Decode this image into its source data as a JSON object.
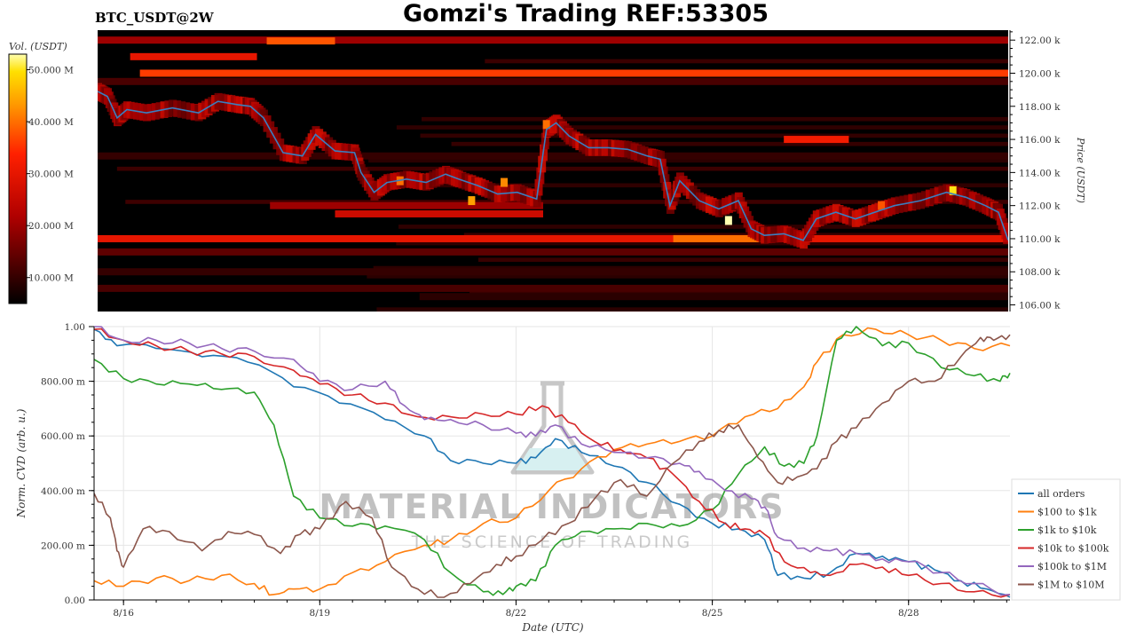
{
  "header": {
    "symbol": "BTC_USDT@2W",
    "title": "Gomzi's Trading REF:53305"
  },
  "watermark": {
    "brand": "MATERIAL INDICATORS",
    "tagline": "THE SCIENCE OF TRADING"
  },
  "colors": {
    "all_orders": "#1f77b4",
    "100_to_1k": "#ff7f0e",
    "1k_to_10k": "#2ca02c",
    "10k_to_100k": "#d62728",
    "100k_to_1M": "#9467bd",
    "1M_to_10M": "#8c564b",
    "heatmap_price_line": "#3a7fc0",
    "heatmap_bg": "#000000"
  },
  "chart_data": [
    {
      "type": "heatmap",
      "colorbar": {
        "label": "Vol. (USDT)",
        "ticks": [
          "10.000 M",
          "20.000 M",
          "30.000 M",
          "40.000 M",
          "50.000 M"
        ],
        "tick_values": [
          10,
          20,
          30,
          40,
          50
        ],
        "range": [
          5,
          53
        ],
        "colormap": "hot"
      },
      "yaxis": {
        "label": "Price (USDT)",
        "side": "right",
        "ticks": [
          "106.00 k",
          "108.00 k",
          "110.00 k",
          "112.00 k",
          "114.00 k",
          "116.00 k",
          "118.00 k",
          "120.00 k",
          "122.00 k"
        ],
        "tick_values": [
          106,
          108,
          110,
          112,
          114,
          116,
          118,
          120,
          122
        ],
        "range": [
          105.6,
          122.6
        ]
      },
      "xaxis": {
        "range_days": [
          15.55,
          29.55
        ]
      },
      "liquidity_bands": [
        {
          "price": 122.0,
          "x0": 15.55,
          "x1": 29.55,
          "level": 20
        },
        {
          "price": 121.95,
          "x0": 18.15,
          "x1": 19.2,
          "level": 38
        },
        {
          "price": 121.0,
          "x0": 16.05,
          "x1": 18.0,
          "level": 30
        },
        {
          "price": 120.0,
          "x0": 16.2,
          "x1": 29.55,
          "level": 36
        },
        {
          "price": 119.5,
          "x0": 15.55,
          "x1": 29.55,
          "level": 12
        },
        {
          "price": 116.0,
          "x0": 26.1,
          "x1": 27.1,
          "level": 32
        },
        {
          "price": 115.0,
          "x0": 15.55,
          "x1": 29.55,
          "level": 10
        },
        {
          "price": 112.0,
          "x0": 18.2,
          "x1": 22.4,
          "level": 20
        },
        {
          "price": 111.5,
          "x0": 19.2,
          "x1": 22.4,
          "level": 26
        },
        {
          "price": 110.0,
          "x0": 15.55,
          "x1": 29.55,
          "level": 30
        },
        {
          "price": 110.0,
          "x0": 24.4,
          "x1": 25.8,
          "level": 40
        },
        {
          "price": 109.2,
          "x0": 15.55,
          "x1": 29.55,
          "level": 14
        },
        {
          "price": 108.0,
          "x0": 15.55,
          "x1": 29.55,
          "level": 10
        },
        {
          "price": 107.0,
          "x0": 15.55,
          "x1": 29.55,
          "level": 12
        },
        {
          "price": 106.5,
          "x0": 20.5,
          "x1": 29.55,
          "level": 9
        }
      ],
      "price_series": {
        "name": "",
        "x": [
          15.55,
          15.7,
          15.85,
          16.0,
          16.3,
          16.7,
          17.1,
          17.4,
          17.7,
          17.9,
          18.1,
          18.4,
          18.7,
          18.9,
          19.2,
          19.5,
          19.6,
          19.8,
          20.0,
          20.3,
          20.6,
          20.9,
          21.1,
          21.4,
          21.7,
          22.0,
          22.3,
          22.45,
          22.6,
          22.8,
          23.1,
          23.4,
          23.7,
          24.0,
          24.2,
          24.35,
          24.5,
          24.8,
          25.1,
          25.4,
          25.6,
          25.8,
          26.1,
          26.4,
          26.6,
          26.9,
          27.2,
          27.5,
          27.8,
          28.2,
          28.6,
          28.9,
          29.2,
          29.4,
          29.55
        ],
        "y": [
          118.9,
          118.6,
          117.3,
          117.8,
          117.6,
          117.9,
          117.6,
          118.3,
          118.1,
          118.0,
          117.3,
          115.2,
          115.0,
          116.3,
          115.3,
          115.2,
          114.0,
          112.8,
          113.4,
          113.6,
          113.4,
          113.9,
          113.6,
          113.2,
          112.7,
          112.8,
          112.4,
          116.6,
          117.0,
          116.2,
          115.5,
          115.5,
          115.4,
          115.0,
          114.8,
          112.0,
          113.5,
          112.3,
          111.8,
          112.3,
          110.6,
          110.2,
          110.3,
          109.9,
          111.2,
          111.6,
          111.2,
          111.6,
          112.0,
          112.3,
          112.8,
          112.5,
          112.0,
          111.6,
          109.9
        ]
      },
      "hotspots": [
        {
          "x": 22.45,
          "price": 116.9,
          "level": 40
        },
        {
          "x": 25.25,
          "price": 111.1,
          "level": 53
        },
        {
          "x": 28.7,
          "price": 112.9,
          "level": 50
        },
        {
          "x": 21.3,
          "price": 112.3,
          "level": 44
        },
        {
          "x": 21.8,
          "price": 113.4,
          "level": 42
        },
        {
          "x": 20.2,
          "price": 113.5,
          "level": 40
        },
        {
          "x": 27.6,
          "price": 112.0,
          "level": 38
        }
      ]
    },
    {
      "type": "line",
      "xlabel": "Date (UTC)",
      "ylabel": "Norm. CVD (arb. u.)",
      "ylim": [
        0,
        1
      ],
      "xlim_days": [
        15.55,
        29.55
      ],
      "x_ticks": [
        "8/16",
        "8/19",
        "8/22",
        "8/25",
        "8/28"
      ],
      "x_tick_values": [
        16,
        19,
        22,
        25,
        28
      ],
      "y_ticks": [
        "0.00",
        "200.00 m",
        "400.00 m",
        "600.00 m",
        "800.00 m",
        "1.00"
      ],
      "y_tick_values": [
        0,
        0.2,
        0.4,
        0.6,
        0.8,
        1.0
      ],
      "legend_position": "bottom-right",
      "series": [
        {
          "key": "all_orders",
          "name": "all orders",
          "x": [
            15.55,
            15.9,
            16.5,
            17.2,
            17.9,
            18.6,
            19.3,
            20.0,
            20.6,
            21.0,
            21.5,
            22.0,
            22.3,
            22.6,
            23.0,
            23.5,
            24.0,
            24.5,
            25.0,
            25.4,
            25.8,
            26.0,
            26.4,
            26.8,
            27.2,
            27.6,
            28.0,
            28.4,
            28.8,
            29.2,
            29.55
          ],
          "y": [
            0.99,
            0.93,
            0.92,
            0.89,
            0.87,
            0.78,
            0.72,
            0.66,
            0.6,
            0.51,
            0.5,
            0.5,
            0.52,
            0.59,
            0.54,
            0.49,
            0.43,
            0.35,
            0.28,
            0.26,
            0.22,
            0.09,
            0.08,
            0.1,
            0.17,
            0.16,
            0.14,
            0.11,
            0.07,
            0.04,
            0.01
          ]
        },
        {
          "key": "100_to_1k",
          "name": "$100 to $1k",
          "x": [
            15.55,
            16.0,
            16.5,
            17.0,
            17.5,
            18.0,
            18.3,
            18.6,
            19.0,
            19.5,
            20.0,
            20.6,
            21.0,
            21.5,
            22.0,
            22.5,
            23.0,
            23.5,
            24.0,
            24.5,
            25.0,
            25.5,
            26.0,
            26.4,
            26.6,
            27.0,
            27.5,
            28.0,
            28.5,
            29.0,
            29.55
          ],
          "y": [
            0.07,
            0.05,
            0.08,
            0.07,
            0.09,
            0.06,
            0.02,
            0.04,
            0.04,
            0.1,
            0.14,
            0.2,
            0.22,
            0.28,
            0.3,
            0.4,
            0.48,
            0.55,
            0.57,
            0.58,
            0.6,
            0.67,
            0.7,
            0.78,
            0.87,
            0.97,
            0.99,
            0.97,
            0.95,
            0.92,
            0.93
          ]
        },
        {
          "key": "1k_to_10k",
          "name": "$1k to $10k",
          "x": [
            15.55,
            16.0,
            16.5,
            17.0,
            17.5,
            18.0,
            18.3,
            18.6,
            19.0,
            19.5,
            20.0,
            20.6,
            21.0,
            21.5,
            21.8,
            22.0,
            22.3,
            22.6,
            23.0,
            23.5,
            24.0,
            24.5,
            25.0,
            25.4,
            25.8,
            26.1,
            26.4,
            26.6,
            26.9,
            27.2,
            27.6,
            28.0,
            28.5,
            29.0,
            29.4,
            29.55
          ],
          "y": [
            0.88,
            0.81,
            0.79,
            0.79,
            0.77,
            0.76,
            0.64,
            0.38,
            0.3,
            0.27,
            0.27,
            0.22,
            0.1,
            0.03,
            0.02,
            0.05,
            0.07,
            0.2,
            0.25,
            0.26,
            0.28,
            0.27,
            0.33,
            0.46,
            0.56,
            0.49,
            0.5,
            0.6,
            0.95,
            1.0,
            0.93,
            0.94,
            0.85,
            0.82,
            0.8,
            0.83
          ]
        },
        {
          "key": "10k_to_100k",
          "name": "$10k to $100k",
          "x": [
            15.55,
            16.0,
            16.5,
            17.0,
            17.5,
            18.0,
            18.6,
            19.0,
            19.5,
            20.0,
            20.5,
            21.0,
            21.5,
            22.0,
            22.4,
            22.8,
            23.2,
            23.6,
            24.0,
            24.4,
            24.8,
            25.2,
            25.5,
            25.8,
            26.1,
            26.5,
            26.8,
            27.2,
            27.6,
            28.0,
            28.5,
            29.0,
            29.55
          ],
          "y": [
            0.99,
            0.95,
            0.93,
            0.91,
            0.9,
            0.89,
            0.84,
            0.79,
            0.75,
            0.72,
            0.67,
            0.67,
            0.68,
            0.68,
            0.71,
            0.65,
            0.58,
            0.55,
            0.52,
            0.46,
            0.36,
            0.28,
            0.26,
            0.24,
            0.14,
            0.1,
            0.09,
            0.13,
            0.12,
            0.09,
            0.06,
            0.03,
            0.02
          ]
        },
        {
          "key": "100k_to_1M",
          "name": "$100k to $1M",
          "x": [
            15.55,
            16.0,
            16.5,
            17.0,
            17.5,
            18.0,
            18.6,
            19.0,
            19.5,
            20.0,
            20.3,
            20.6,
            21.0,
            21.5,
            22.0,
            22.3,
            22.6,
            23.0,
            23.5,
            24.0,
            24.5,
            24.8,
            25.2,
            25.6,
            25.8,
            26.0,
            26.4,
            26.8,
            27.2,
            27.6,
            28.0,
            28.5,
            29.0,
            29.55
          ],
          "y": [
            1.0,
            0.95,
            0.95,
            0.94,
            0.92,
            0.91,
            0.88,
            0.8,
            0.77,
            0.8,
            0.71,
            0.66,
            0.66,
            0.64,
            0.61,
            0.6,
            0.64,
            0.57,
            0.54,
            0.52,
            0.5,
            0.47,
            0.4,
            0.37,
            0.34,
            0.23,
            0.19,
            0.18,
            0.17,
            0.15,
            0.14,
            0.1,
            0.06,
            0.02
          ]
        },
        {
          "key": "1M_to_10M",
          "name": "$1M to $10M",
          "x": [
            15.55,
            15.8,
            15.9,
            16.0,
            16.3,
            16.7,
            17.2,
            17.6,
            18.0,
            18.4,
            18.7,
            19.0,
            19.4,
            19.8,
            20.1,
            20.5,
            20.9,
            21.3,
            21.7,
            22.0,
            22.4,
            22.8,
            23.2,
            23.6,
            24.0,
            24.4,
            24.8,
            25.1,
            25.4,
            25.7,
            26.0,
            26.3,
            26.6,
            26.9,
            27.2,
            27.6,
            28.0,
            28.4,
            28.8,
            29.1,
            29.3,
            29.55
          ],
          "y": [
            0.39,
            0.3,
            0.18,
            0.12,
            0.26,
            0.25,
            0.18,
            0.25,
            0.24,
            0.17,
            0.24,
            0.26,
            0.36,
            0.3,
            0.12,
            0.04,
            0.01,
            0.06,
            0.13,
            0.16,
            0.22,
            0.28,
            0.37,
            0.44,
            0.38,
            0.5,
            0.58,
            0.62,
            0.64,
            0.52,
            0.43,
            0.45,
            0.48,
            0.58,
            0.63,
            0.72,
            0.8,
            0.8,
            0.89,
            0.96,
            0.95,
            0.97
          ]
        }
      ]
    }
  ]
}
